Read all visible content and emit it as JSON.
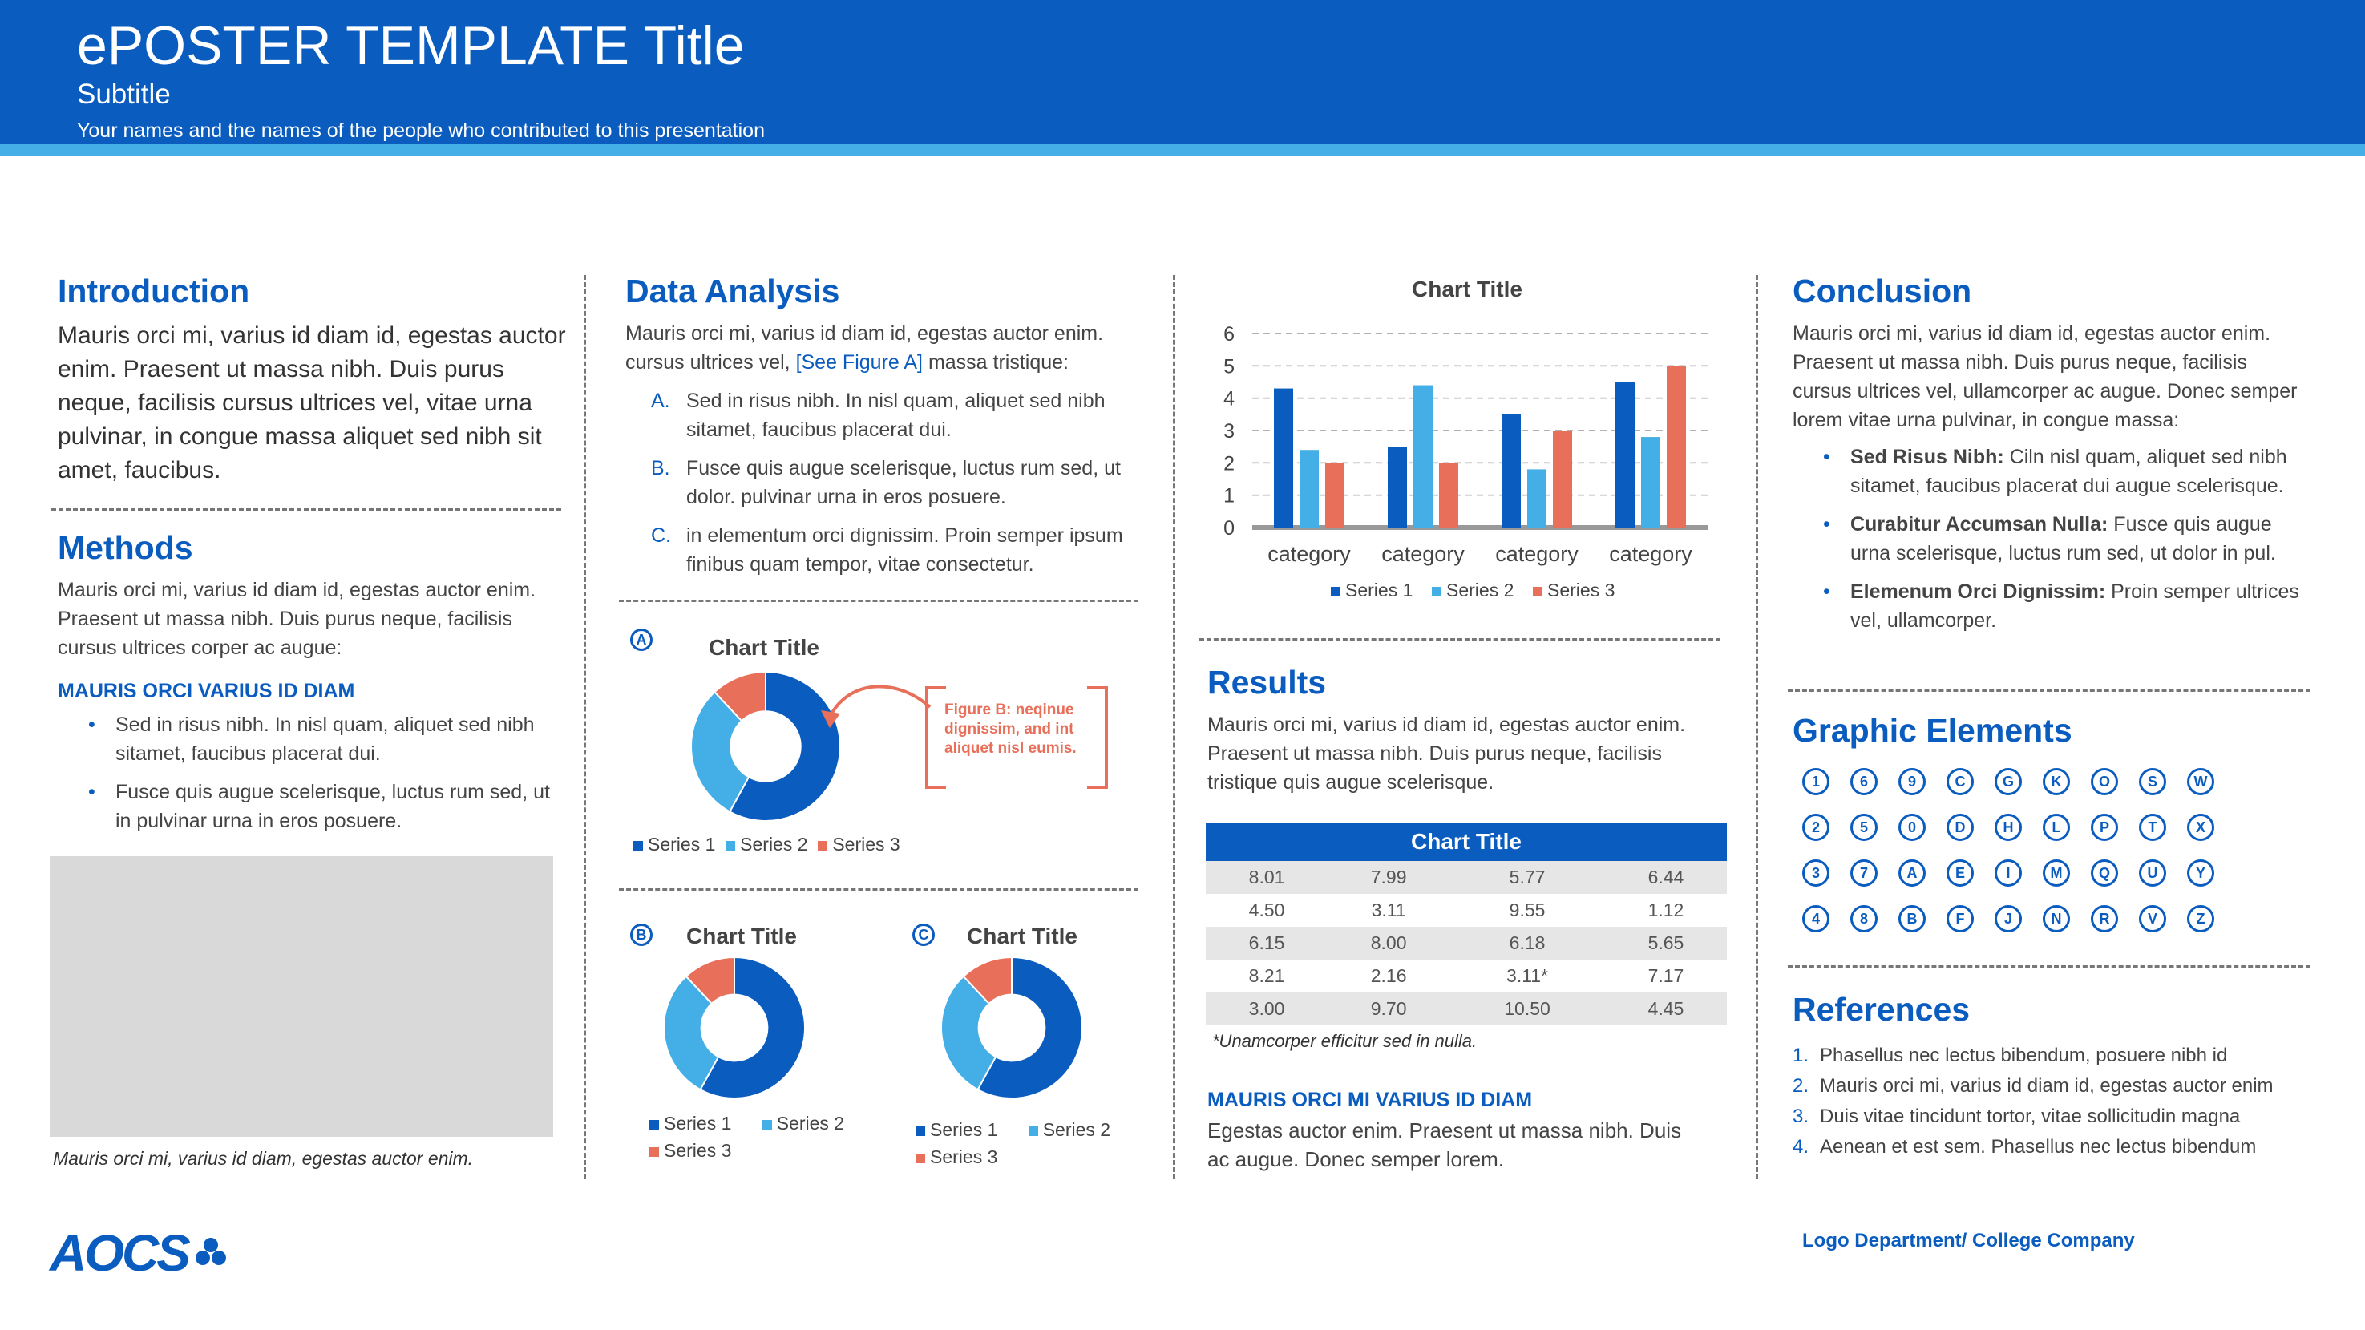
{
  "header": {
    "title": "ePOSTER TEMPLATE Title",
    "subtitle": "Subtitle",
    "authors": "Your names and the names of the people who contributed to this presentation"
  },
  "colors": {
    "primary": "#0a5cbf",
    "light": "#44aee6",
    "accent": "#e8705a",
    "gray": "#d9d9d9"
  },
  "intro": {
    "heading": "Introduction",
    "text": "Mauris orci mi, varius id diam id, egestas auctor enim. Praesent ut massa nibh. Duis purus neque, facilisis cursus ultrices vel, vitae urna pulvinar, in congue massa aliquet sed nibh sit amet, faucibus."
  },
  "methods": {
    "heading": "Methods",
    "text": "Mauris orci mi, varius id diam id, egestas auctor enim. Praesent ut massa nibh. Duis purus neque, facilisis cursus ultrices corper ac augue:",
    "subheading": "MAURIS ORCI VARIUS ID DIAM",
    "bullets": [
      "Sed in risus nibh. In nisl quam, aliquet sed nibh sitamet, faucibus placerat dui.",
      "Fusce quis augue scelerisque, luctus rum sed, ut in pulvinar urna in eros posuere."
    ],
    "caption": "Mauris orci mi, varius id diam, egestas auctor enim."
  },
  "analysis": {
    "heading": "Data Analysis",
    "text_before": "Mauris orci mi, varius id diam id, egestas auctor enim. cursus ultrices vel, ",
    "link": "[See Figure A]",
    "text_after": " massa tristique:",
    "items": [
      {
        "marker": "A.",
        "text": "Sed in risus nibh. In nisl quam, aliquet sed nibh sitamet, faucibus placerat dui."
      },
      {
        "marker": "B.",
        "text": "Fusce quis augue scelerisque, luctus rum sed, ut dolor. pulvinar urna in eros posuere."
      },
      {
        "marker": "C.",
        "text": "in elementum orci dignissim. Proin semper ipsum finibus quam tempor, vitae consectetur."
      }
    ],
    "figure_note": "Figure B: neqinue dignissim, and  int aliquet nisl eumis."
  },
  "results": {
    "heading": "Results",
    "text": "Mauris orci mi, varius id diam id, egestas auctor enim. Praesent ut massa nibh. Duis purus neque, facilisis tristique quis augue scelerisque.",
    "table_title": "Chart Title",
    "rows": [
      [
        "8.01",
        "7.99",
        "5.77",
        "6.44"
      ],
      [
        "4.50",
        "3.11",
        "9.55",
        "1.12"
      ],
      [
        "6.15",
        "8.00",
        "6.18",
        "5.65"
      ],
      [
        "8.21",
        "2.16",
        "3.11*",
        "7.17"
      ],
      [
        "3.00",
        "9.70",
        "10.50",
        "4.45"
      ]
    ],
    "footnote": "*Unamcorper efficitur sed in nulla.",
    "subheading": "MAURIS ORCI MI VARIUS ID DIAM",
    "text2": "Egestas auctor enim. Praesent ut massa nibh. Duis ac augue. Donec semper lorem."
  },
  "conclusion": {
    "heading": "Conclusion",
    "text": "Mauris orci mi, varius id diam id, egestas auctor enim. Praesent ut massa nibh. Duis purus neque, facilisis cursus ultrices vel, ullamcorper ac augue. Donec semper lorem vitae urna pulvinar, in congue massa:",
    "bullets": [
      {
        "bold": "Sed Risus Nibh:",
        "text": " Ciln nisl quam, aliquet sed nibh sitamet, faucibus placerat dui augue scelerisque."
      },
      {
        "bold": "Curabitur Accumsan Nulla:",
        "text": " Fusce quis augue urna scelerisque, luctus rum sed, ut dolor in pul."
      },
      {
        "bold": " Elemenum Orci Dignissim:",
        "text": " Proin semper ultrices vel, ullamcorper."
      }
    ]
  },
  "graphics": {
    "heading": "Graphic Elements",
    "rows": [
      [
        "1",
        "6",
        "9",
        "C",
        "G",
        "K",
        "O",
        "S",
        "W"
      ],
      [
        "2",
        "5",
        "0",
        "D",
        "H",
        "L",
        "P",
        "T",
        "X"
      ],
      [
        "3",
        "7",
        "A",
        "E",
        "I",
        "M",
        "Q",
        "U",
        "Y"
      ],
      [
        "4",
        "8",
        "B",
        "F",
        "J",
        "N",
        "R",
        "V",
        "Z"
      ]
    ]
  },
  "references": {
    "heading": "References",
    "items": [
      {
        "n": "1.",
        "text": "Phasellus nec lectus bibendum, posuere nibh id"
      },
      {
        "n": "2.",
        "text": "Mauris orci mi, varius id diam id, egestas auctor enim"
      },
      {
        "n": "3.",
        "text": "Duis vitae tincidunt tortor, vitae sollicitudin magna"
      },
      {
        "n": "4.",
        "text": "Aenean et est sem. Phasellus nec lectus bibendum"
      }
    ]
  },
  "footer": {
    "logo_text": "AOCS",
    "right": "Logo Department/ College Company"
  },
  "chart_data": [
    {
      "type": "bar",
      "title": "Chart Title",
      "categories": [
        "category",
        "category",
        "category",
        "category"
      ],
      "series": [
        {
          "name": "Series 1",
          "values": [
            4.3,
            2.5,
            3.5,
            4.5
          ]
        },
        {
          "name": "Series 2",
          "values": [
            2.4,
            4.4,
            1.8,
            2.8
          ]
        },
        {
          "name": "Series 3",
          "values": [
            2.0,
            2.0,
            3.0,
            5.0
          ]
        }
      ],
      "ylim": [
        0,
        6
      ],
      "yticks": [
        "0",
        "1",
        "2",
        "3",
        "4",
        "5",
        "6"
      ],
      "grid": true,
      "legend": "bottom"
    },
    {
      "type": "pie",
      "label": "A",
      "title": "Chart Title",
      "labels": [
        "Series 1",
        "Series 2",
        "Series 3"
      ],
      "values": [
        58,
        30,
        12
      ]
    },
    {
      "type": "pie",
      "label": "B",
      "title": "Chart Title",
      "labels": [
        "Series 1",
        "Series 2",
        "Series 3"
      ],
      "values": [
        58,
        30,
        12
      ]
    },
    {
      "type": "pie",
      "label": "C",
      "title": "Chart Title",
      "labels": [
        "Series 1",
        "Series 2",
        "Series 3"
      ],
      "values": [
        58,
        30,
        12
      ]
    }
  ]
}
